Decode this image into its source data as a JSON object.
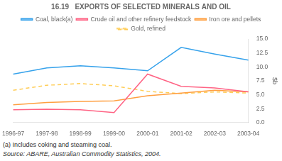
{
  "chart_data": {
    "type": "line",
    "title": "16.19   EXPORTS OF SELECTED MINERALS AND OIL",
    "categories": [
      "1996-97",
      "1997-98",
      "1998-99",
      "1999-00",
      "2000-01",
      "2001-02",
      "2002-03",
      "2003-04"
    ],
    "ylabel": "$b",
    "ylim": [
      0,
      15.0
    ],
    "yticks": [
      {
        "value": 0.0,
        "label": "0.0"
      },
      2.5,
      {
        "value": 5.0,
        "label": "5.0"
      },
      7.5,
      {
        "value": 10.0,
        "label": "10.0"
      },
      12.5,
      {
        "value": 15.0,
        "label": "15.0"
      }
    ],
    "series": [
      {
        "name": "Coal, black(a)",
        "values": [
          8.7,
          9.8,
          10.2,
          9.8,
          9.3,
          13.5,
          12.3,
          11.2
        ]
      },
      {
        "name": "Crude oil and other refinery feedstock",
        "values": [
          2.3,
          2.4,
          2.3,
          1.8,
          8.7,
          6.5,
          6.2,
          5.5
        ]
      },
      {
        "name": "Iron ore and pellets",
        "values": [
          3.2,
          3.6,
          3.8,
          3.9,
          4.8,
          5.3,
          5.8,
          5.5
        ]
      },
      {
        "name": "Gold, refined",
        "values": [
          5.8,
          6.7,
          7.0,
          6.6,
          5.6,
          5.2,
          5.5,
          5.3
        ],
        "line_style": "dashed"
      }
    ],
    "annotations": [
      "(a) Includes coking and steaming coal.",
      "Source: ABARE, Australian Commodity Statistics, 2004."
    ],
    "grid": false,
    "legend": "top"
  }
}
